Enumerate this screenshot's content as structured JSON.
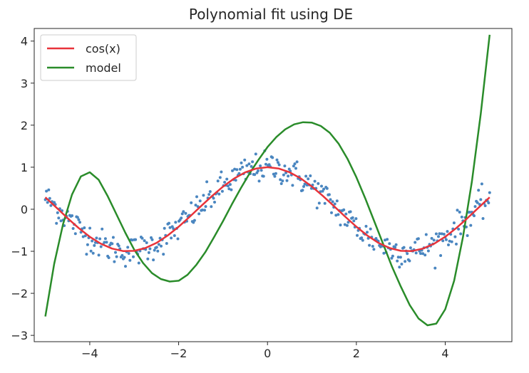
{
  "chart_data": {
    "type": "line",
    "title": "Polynomial fit using DE",
    "xlabel": "",
    "ylabel": "",
    "xlim": [
      -5.25,
      5.5
    ],
    "ylim": [
      -3.15,
      4.3
    ],
    "xticks": [
      -4,
      -2,
      0,
      2,
      4
    ],
    "yticks": [
      -3,
      -2,
      -1,
      0,
      1,
      2,
      3,
      4
    ],
    "xtick_labels": [
      "−4",
      "−2",
      "0",
      "2",
      "4"
    ],
    "ytick_labels": [
      "−3",
      "−2",
      "−1",
      "0",
      "1",
      "2",
      "3",
      "4"
    ],
    "grid": false,
    "legend": {
      "placement": "upper-left",
      "entries": [
        {
          "label": "cos(x)",
          "color": "#e8333a"
        },
        {
          "label": "model",
          "color": "#2a8c2a"
        }
      ]
    },
    "series": [
      {
        "name": "cos(x)",
        "kind": "line",
        "color": "#e8333a",
        "x": [
          -5.0,
          -4.75,
          -4.5,
          -4.25,
          -4.0,
          -3.75,
          -3.5,
          -3.25,
          -3.0,
          -2.75,
          -2.5,
          -2.25,
          -2.0,
          -1.75,
          -1.5,
          -1.25,
          -1.0,
          -0.75,
          -0.5,
          -0.25,
          0.0,
          0.25,
          0.5,
          0.75,
          1.0,
          1.25,
          1.5,
          1.75,
          2.0,
          2.25,
          2.5,
          2.75,
          3.0,
          3.25,
          3.5,
          3.75,
          4.0,
          4.25,
          4.5,
          4.75,
          5.0
        ],
        "y": [
          0.284,
          0.038,
          -0.211,
          -0.446,
          -0.654,
          -0.821,
          -0.936,
          -0.994,
          -0.99,
          -0.924,
          -0.801,
          -0.628,
          -0.416,
          -0.178,
          0.071,
          0.315,
          0.54,
          0.732,
          0.878,
          0.969,
          1.0,
          0.969,
          0.878,
          0.732,
          0.54,
          0.315,
          0.071,
          -0.178,
          -0.416,
          -0.628,
          -0.801,
          -0.924,
          -0.99,
          -0.994,
          -0.936,
          -0.821,
          -0.654,
          -0.446,
          -0.211,
          0.038,
          0.284
        ]
      },
      {
        "name": "model",
        "kind": "line",
        "color": "#2a8c2a",
        "x": [
          -5.0,
          -4.8,
          -4.6,
          -4.4,
          -4.2,
          -4.0,
          -3.8,
          -3.6,
          -3.4,
          -3.2,
          -3.0,
          -2.8,
          -2.6,
          -2.4,
          -2.2,
          -2.0,
          -1.8,
          -1.6,
          -1.4,
          -1.2,
          -1.0,
          -0.8,
          -0.6,
          -0.4,
          -0.2,
          0.0,
          0.2,
          0.4,
          0.6,
          0.8,
          1.0,
          1.2,
          1.4,
          1.6,
          1.8,
          2.0,
          2.2,
          2.4,
          2.6,
          2.8,
          3.0,
          3.2,
          3.4,
          3.6,
          3.8,
          4.0,
          4.2,
          4.4,
          4.6,
          4.8,
          5.0
        ],
        "y": [
          -2.55,
          -1.3,
          -0.35,
          0.35,
          0.78,
          0.88,
          0.7,
          0.32,
          -0.12,
          -0.56,
          -0.96,
          -1.28,
          -1.52,
          -1.66,
          -1.72,
          -1.7,
          -1.56,
          -1.32,
          -1.02,
          -0.66,
          -0.28,
          0.12,
          0.5,
          0.86,
          1.18,
          1.48,
          1.72,
          1.9,
          2.02,
          2.07,
          2.06,
          1.98,
          1.82,
          1.56,
          1.2,
          0.76,
          0.26,
          -0.28,
          -0.82,
          -1.36,
          -1.84,
          -2.28,
          -2.6,
          -2.76,
          -2.72,
          -2.38,
          -1.7,
          -0.66,
          0.66,
          2.28,
          4.15
        ]
      },
      {
        "name": "",
        "kind": "scatter",
        "color": "#4a86c0",
        "count": 400,
        "x_range": [
          -5.0,
          5.0
        ],
        "spread": 0.18,
        "peak": 1.42,
        "trough": -1.4
      }
    ]
  }
}
